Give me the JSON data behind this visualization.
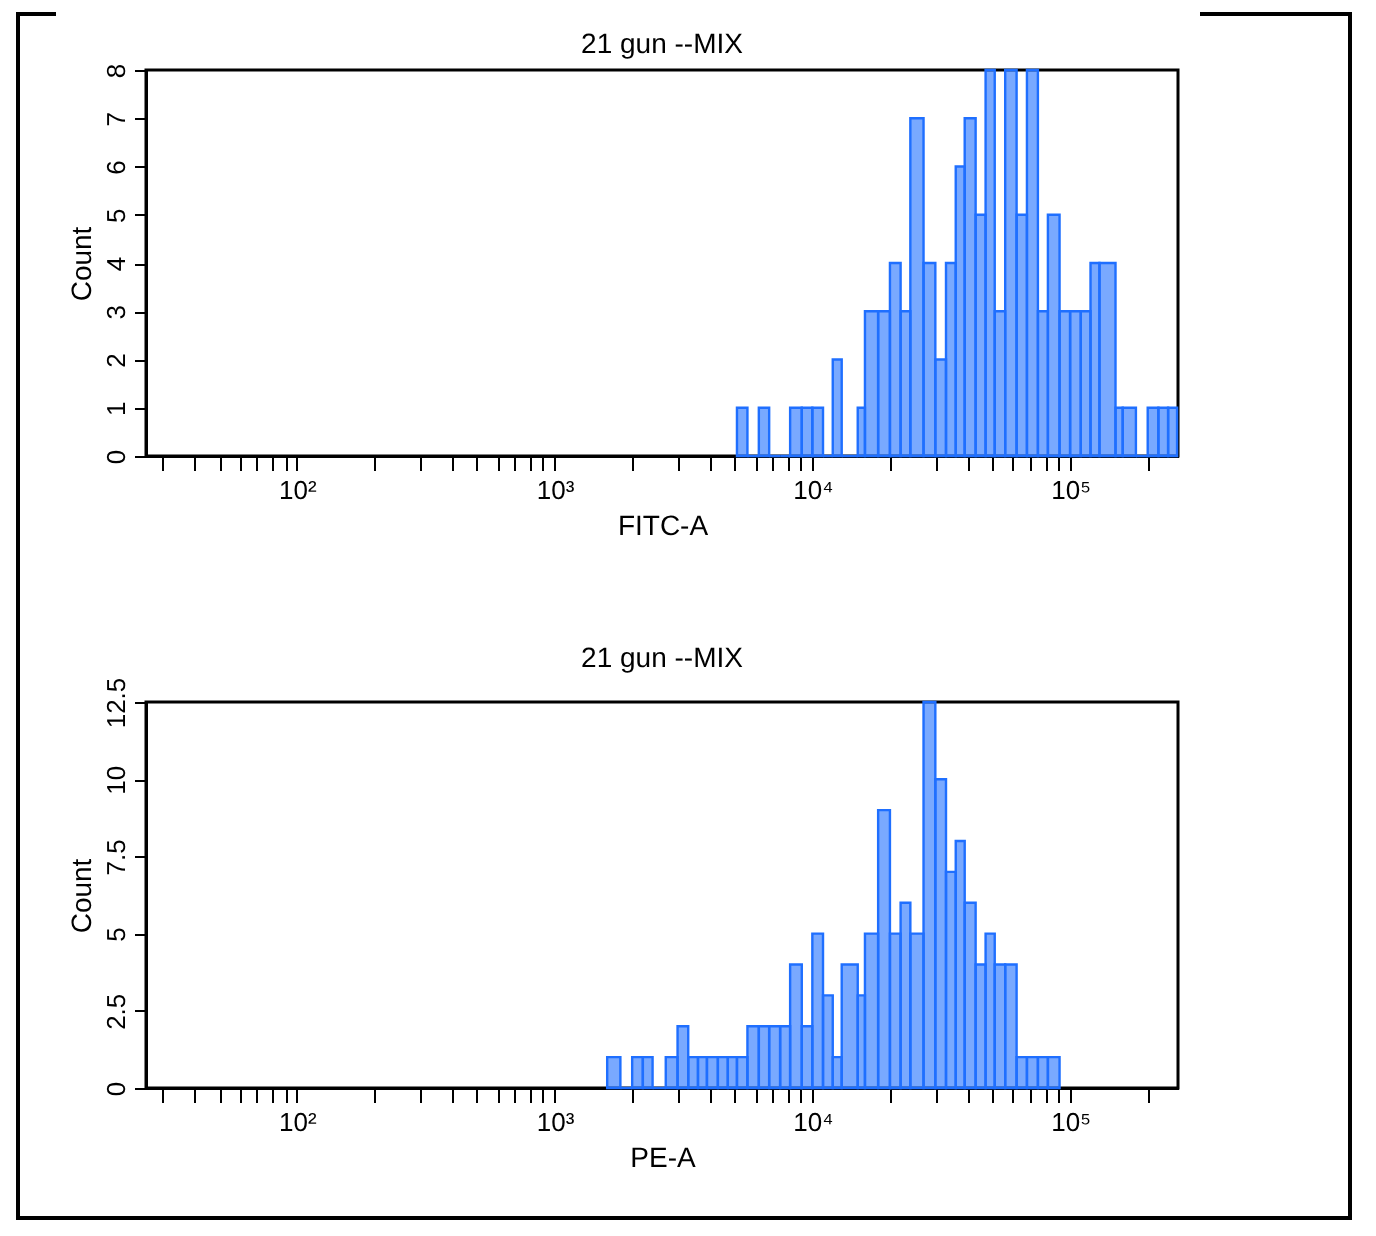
{
  "chart_data": [
    {
      "type": "histogram",
      "title": "21 gun --MIX",
      "xlabel": "FITC-A",
      "ylabel": "Count",
      "color": "#1f6fff",
      "log": "x",
      "xlim": [
        26,
        262144
      ],
      "ylim": [
        0,
        8
      ],
      "yticks": [
        0,
        1,
        2,
        3,
        4,
        5,
        6,
        7,
        8
      ],
      "xticks": [
        {
          "value": 30,
          "label": null
        },
        {
          "value": 40,
          "label": null
        },
        {
          "value": 50,
          "label": null
        },
        {
          "value": 60,
          "label": null
        },
        {
          "value": 70,
          "label": null
        },
        {
          "value": 80,
          "label": null
        },
        {
          "value": 90,
          "label": null
        },
        {
          "value": 100,
          "label": "10²"
        },
        {
          "value": 200,
          "label": null
        },
        {
          "value": 300,
          "label": null
        },
        {
          "value": 400,
          "label": null
        },
        {
          "value": 500,
          "label": null
        },
        {
          "value": 600,
          "label": null
        },
        {
          "value": 700,
          "label": null
        },
        {
          "value": 800,
          "label": null
        },
        {
          "value": 900,
          "label": null
        },
        {
          "value": 1000,
          "label": "10³"
        },
        {
          "value": 2000,
          "label": null
        },
        {
          "value": 3000,
          "label": null
        },
        {
          "value": 4000,
          "label": null
        },
        {
          "value": 5000,
          "label": null
        },
        {
          "value": 6000,
          "label": null
        },
        {
          "value": 7000,
          "label": null
        },
        {
          "value": 8000,
          "label": null
        },
        {
          "value": 9000,
          "label": null
        },
        {
          "value": 10000,
          "label": "10⁴"
        },
        {
          "value": 20000,
          "label": null
        },
        {
          "value": 30000,
          "label": null
        },
        {
          "value": 40000,
          "label": null
        },
        {
          "value": 50000,
          "label": null
        },
        {
          "value": 60000,
          "label": null
        },
        {
          "value": 70000,
          "label": null
        },
        {
          "value": 80000,
          "label": null
        },
        {
          "value": 90000,
          "label": null
        },
        {
          "value": 100000,
          "label": "10⁵"
        },
        {
          "value": 200000,
          "label": null
        }
      ],
      "bins": [
        5100,
        5600,
        6200,
        6800,
        7500,
        8200,
        9100,
        10000,
        11000,
        12000,
        13000,
        15000,
        16000,
        18000,
        20000,
        22000,
        24000,
        27000,
        30000,
        33000,
        36000,
        39000,
        43000,
        47000,
        51000,
        56000,
        62000,
        68000,
        75000,
        82000,
        91000,
        100000,
        110000,
        120000,
        130000,
        150000,
        160000,
        180000,
        200000,
        220000,
        240000,
        260000
      ],
      "values": [
        1,
        0,
        1,
        0,
        0,
        1,
        1,
        1,
        0,
        2,
        0,
        1,
        3,
        3,
        4,
        3,
        7,
        4,
        2,
        4,
        6,
        7,
        5,
        8,
        3,
        8,
        5,
        8,
        3,
        5,
        3,
        3,
        3,
        4,
        4,
        1,
        1,
        0,
        1,
        1,
        1
      ]
    },
    {
      "type": "histogram",
      "title": "21 gun --MIX",
      "xlabel": "PE-A",
      "ylabel": "Count",
      "color": "#1f6fff",
      "log": "x",
      "xlim": [
        26,
        262144
      ],
      "ylim": [
        0,
        12.5
      ],
      "yticks": [
        0,
        2.5,
        5,
        7.5,
        10,
        12.5
      ],
      "xticks": [
        {
          "value": 30,
          "label": null
        },
        {
          "value": 40,
          "label": null
        },
        {
          "value": 50,
          "label": null
        },
        {
          "value": 60,
          "label": null
        },
        {
          "value": 70,
          "label": null
        },
        {
          "value": 80,
          "label": null
        },
        {
          "value": 90,
          "label": null
        },
        {
          "value": 100,
          "label": "10²"
        },
        {
          "value": 200,
          "label": null
        },
        {
          "value": 300,
          "label": null
        },
        {
          "value": 400,
          "label": null
        },
        {
          "value": 500,
          "label": null
        },
        {
          "value": 600,
          "label": null
        },
        {
          "value": 700,
          "label": null
        },
        {
          "value": 800,
          "label": null
        },
        {
          "value": 900,
          "label": null
        },
        {
          "value": 1000,
          "label": "10³"
        },
        {
          "value": 2000,
          "label": null
        },
        {
          "value": 3000,
          "label": null
        },
        {
          "value": 4000,
          "label": null
        },
        {
          "value": 5000,
          "label": null
        },
        {
          "value": 6000,
          "label": null
        },
        {
          "value": 7000,
          "label": null
        },
        {
          "value": 8000,
          "label": null
        },
        {
          "value": 9000,
          "label": null
        },
        {
          "value": 10000,
          "label": "10⁴"
        },
        {
          "value": 20000,
          "label": null
        },
        {
          "value": 30000,
          "label": null
        },
        {
          "value": 40000,
          "label": null
        },
        {
          "value": 50000,
          "label": null
        },
        {
          "value": 60000,
          "label": null
        },
        {
          "value": 70000,
          "label": null
        },
        {
          "value": 80000,
          "label": null
        },
        {
          "value": 90000,
          "label": null
        },
        {
          "value": 100000,
          "label": "10⁵"
        },
        {
          "value": 200000,
          "label": null
        }
      ],
      "bins": [
        1600,
        1800,
        2000,
        2200,
        2400,
        2700,
        3000,
        3300,
        3600,
        3900,
        4300,
        4700,
        5100,
        5600,
        6200,
        6800,
        7500,
        8200,
        9100,
        10000,
        11000,
        12000,
        13000,
        15000,
        16000,
        18000,
        20000,
        22000,
        24000,
        27000,
        30000,
        33000,
        36000,
        39000,
        43000,
        47000,
        51000,
        56000,
        62000,
        68000,
        75000,
        82000,
        91000
      ],
      "values": [
        1,
        0,
        1,
        1,
        0,
        1,
        2,
        1,
        1,
        1,
        1,
        1,
        1,
        2,
        2,
        2,
        2,
        4,
        2,
        5,
        3,
        1,
        4,
        3,
        5,
        9,
        5,
        6,
        5,
        12.5,
        10,
        7,
        8,
        6,
        4,
        5,
        4,
        4,
        1,
        1,
        1,
        1
      ]
    }
  ]
}
